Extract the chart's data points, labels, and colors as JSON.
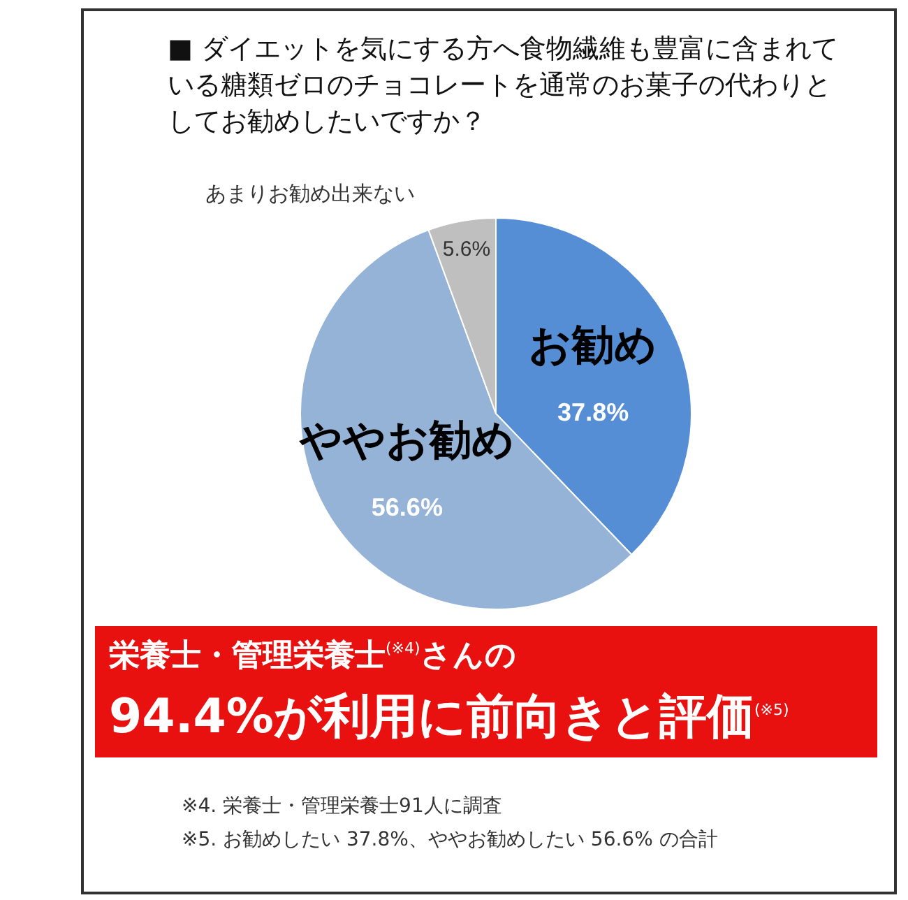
{
  "chart_data": {
    "type": "pie",
    "title": "■ ダイエットを気にする方へ食物繊維も豊富に含まれている糖類ゼロのチョコレートを通常のお菓子の代わりとしてお勧めしたいですか？",
    "categories": [
      "お勧め",
      "ややお勧め",
      "あまりお勧め出来ない"
    ],
    "values": [
      37.8,
      56.6,
      5.6
    ],
    "colors": [
      "#558ed5",
      "#95b3d7",
      "#bfbfbf"
    ],
    "value_labels": [
      "37.8%",
      "56.6%",
      "5.6%"
    ],
    "annotations": [
      "栄養士・管理栄養士$^{(※4)}$さんの",
      "94.4%が利用に前向きと評価$^{(※5)}$",
      "※4.  栄養士・管理栄養士91人に調査",
      "※5.  お勧めしたい 37.8%、ややお勧めしたい 56.6% の合計"
    ]
  }
}
